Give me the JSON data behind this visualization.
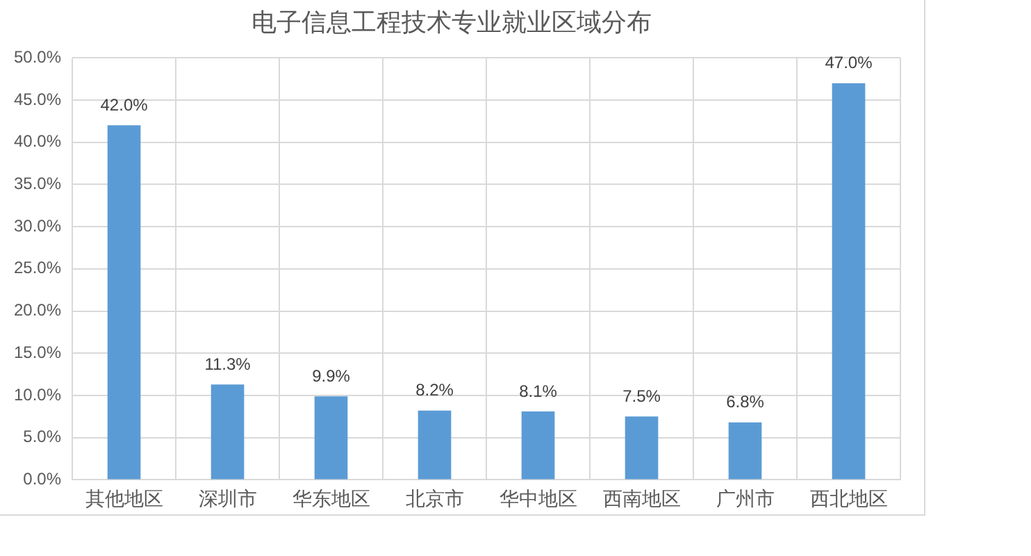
{
  "chart_data": {
    "type": "bar",
    "title": "电子信息工程技术专业就业区域分布",
    "categories": [
      "其他地区",
      "深圳市",
      "华东地区",
      "北京市",
      "华中地区",
      "西南地区",
      "广州市",
      "西北地区"
    ],
    "values": [
      42.0,
      11.3,
      9.9,
      8.2,
      8.1,
      7.5,
      6.8,
      47.0
    ],
    "value_labels": [
      "42.0%",
      "11.3%",
      "9.9%",
      "8.2%",
      "8.1%",
      "7.5%",
      "6.8%",
      "47.0%"
    ],
    "color": "#5b9bd5",
    "ylim": [
      0,
      50
    ],
    "yticks": [
      {
        "value": 0,
        "label": "0.0%"
      },
      {
        "value": 5,
        "label": "5.0%"
      },
      {
        "value": 10,
        "label": "10.0%"
      },
      {
        "value": 15,
        "label": "15.0%"
      },
      {
        "value": 20,
        "label": "20.0%"
      },
      {
        "value": 25,
        "label": "25.0%"
      },
      {
        "value": 30,
        "label": "30.0%"
      },
      {
        "value": 35,
        "label": "35.0%"
      },
      {
        "value": 40,
        "label": "40.0%"
      },
      {
        "value": 45,
        "label": "45.0%"
      },
      {
        "value": 50,
        "label": "50.0%"
      }
    ],
    "grid": true,
    "legend": false
  }
}
